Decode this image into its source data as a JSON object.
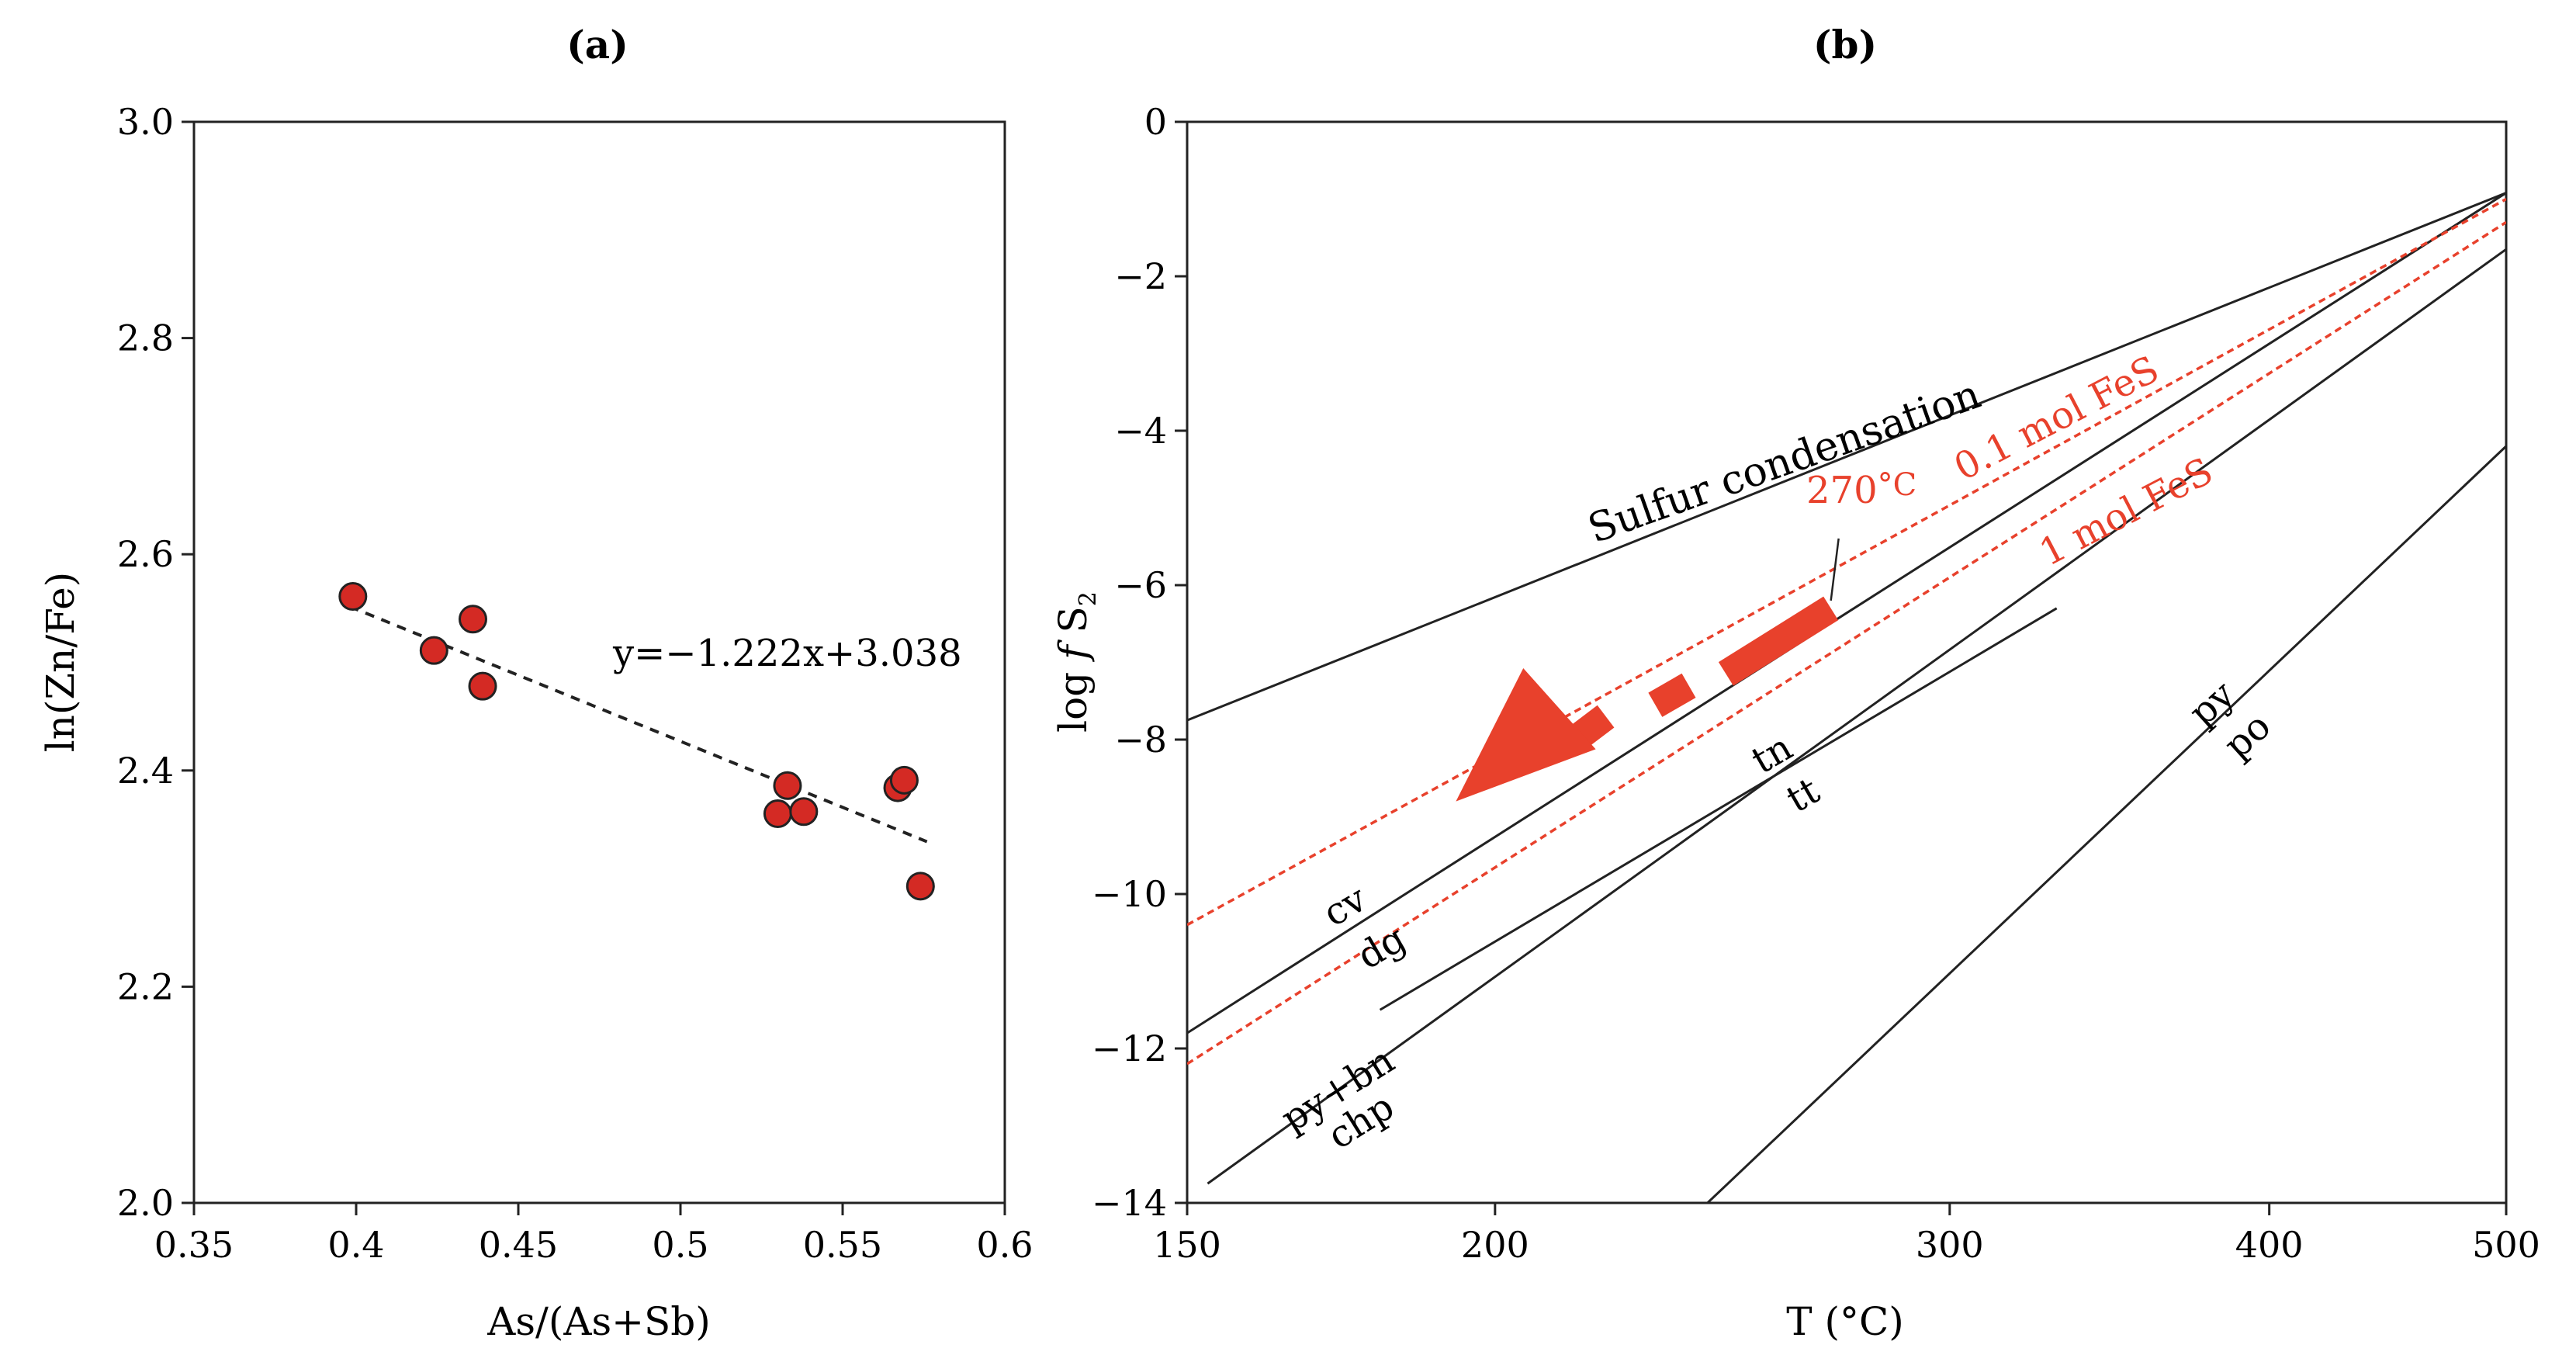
{
  "chart_data": [
    {
      "type": "scatter",
      "panel_label": "(a)",
      "xlabel": "As/(As+Sb)",
      "ylabel": "ln(Zn/Fe)",
      "xlim": [
        0.35,
        0.6
      ],
      "ylim": [
        2.0,
        3.0
      ],
      "x_ticks": [
        "0.35",
        "0.4",
        "0.45",
        "0.5",
        "0.55",
        "0.6"
      ],
      "y_ticks": [
        "2.0",
        "2.2",
        "2.4",
        "2.6",
        "2.8",
        "3.0"
      ],
      "marker_color": "#d42a24",
      "points": [
        {
          "x": 0.399,
          "y": 2.561
        },
        {
          "x": 0.424,
          "y": 2.511
        },
        {
          "x": 0.436,
          "y": 2.54
        },
        {
          "x": 0.439,
          "y": 2.478
        },
        {
          "x": 0.53,
          "y": 2.36
        },
        {
          "x": 0.533,
          "y": 2.386
        },
        {
          "x": 0.538,
          "y": 2.362
        },
        {
          "x": 0.567,
          "y": 2.384
        },
        {
          "x": 0.569,
          "y": 2.391
        },
        {
          "x": 0.574,
          "y": 2.293
        }
      ],
      "fit": {
        "label": "y=−1.222x+3.038",
        "slope": -1.222,
        "intercept": 3.038,
        "x_range": [
          0.398,
          0.576
        ]
      }
    },
    {
      "type": "line",
      "panel_label": "(b)",
      "xlabel": "T (°C)",
      "ylabel_main": "log ",
      "ylabel_f": "f",
      "ylabel_S": " S",
      "ylabel_sub": "2",
      "x_scale": "reciprocal",
      "xlim": [
        150,
        500
      ],
      "ylim": [
        -14,
        0
      ],
      "x_ticks": [
        "150",
        "200",
        "300",
        "400",
        "500"
      ],
      "y_ticks": [
        "0",
        "−2",
        "−4",
        "−6",
        "−8",
        "−10",
        "−12",
        "−14"
      ],
      "accent_color": "#e8412c",
      "curves": [
        {
          "name": "Sulfur condensation",
          "points": [
            [
              150,
              -7.75
            ],
            [
              500,
              -0.92
            ]
          ]
        },
        {
          "name": "cv/dg",
          "points": [
            [
              150,
              -11.8
            ],
            [
              500,
              -0.92
            ]
          ]
        },
        {
          "name": "tn/tt",
          "points": [
            [
              180,
              -11.5
            ],
            [
              330,
              -6.3
            ]
          ]
        },
        {
          "name": "py+bn/chp",
          "points": [
            [
              153,
              -13.75
            ],
            [
              500,
              -1.65
            ]
          ]
        },
        {
          "name": "py/po",
          "points": [
            [
              242,
              -14.0
            ],
            [
              500,
              -4.2
            ]
          ]
        }
      ],
      "dashed_curves": [
        {
          "name": "0.1 mol FeS",
          "points": [
            [
              150,
              -10.4
            ],
            [
              500,
              -1.0
            ]
          ]
        },
        {
          "name": "1 mol FeS",
          "points": [
            [
              150,
              -12.2
            ],
            [
              500,
              -1.3
            ]
          ]
        }
      ],
      "labels": {
        "sulfur": "Sulfur condensation",
        "fes01": "0.1 mol FeS",
        "fes1": "1 mol FeS",
        "temp_value": "270",
        "temp_unit": "°C",
        "cv": "cv",
        "dg": "dg",
        "tn": "tn",
        "tt": "tt",
        "pybn": "py+bn",
        "chp": "chp",
        "py": "py",
        "po": "po"
      },
      "trend": {
        "marker_270": {
          "x": 270,
          "y": -6.2
        },
        "segments": [
          {
            "from": [
              270,
              -6.3
            ],
            "to": [
              246,
              -7.15
            ]
          },
          {
            "from": [
              238,
              -7.3
            ],
            "to": [
              231,
              -7.55
            ]
          },
          {
            "from": [
              221,
              -7.7
            ],
            "to": [
              216,
              -7.95
            ]
          }
        ],
        "arrow_tip": {
          "x": 193,
          "y": -8.8
        },
        "arrow_back": {
          "x": 212,
          "y": -7.6
        }
      }
    }
  ]
}
